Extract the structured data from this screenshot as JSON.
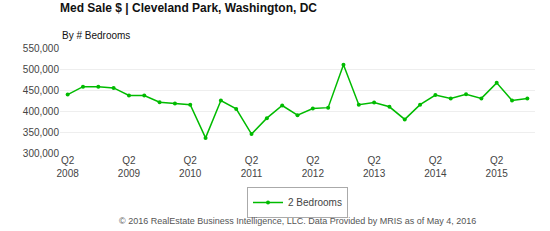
{
  "chart_data": {
    "type": "line",
    "title": "Med Sale $ | Cleveland Park, Washington, DC",
    "subtitle": "By # Bedrooms",
    "annotations": [
      "© 2016 RealEstate Business Intelligence, LLC. Data Provided by MRIS as of May 4, 2016"
    ],
    "categories": [
      "Q2\n2008",
      null,
      null,
      null,
      "Q2\n2009",
      null,
      null,
      null,
      "Q2\n2010",
      null,
      null,
      null,
      "Q2\n2011",
      null,
      null,
      null,
      "Q2\n2012",
      null,
      null,
      null,
      "Q2\n2013",
      null,
      null,
      null,
      "Q2\n2014",
      null,
      null,
      null,
      "Q2\n2015",
      null,
      null
    ],
    "series": [
      {
        "name": "2 Bedrooms",
        "color": "#00bb00",
        "marker": "circle",
        "values": [
          439000,
          458000,
          458000,
          455000,
          437000,
          437000,
          421000,
          418000,
          415000,
          336000,
          425000,
          405000,
          345000,
          383000,
          413000,
          390000,
          406000,
          408000,
          510000,
          415000,
          420000,
          410000,
          380000,
          415000,
          438000,
          430000,
          440000,
          430000,
          467000,
          425000,
          430000
        ]
      }
    ],
    "ylim": [
      300000,
      550000
    ],
    "yticks": [
      {
        "value": 300000,
        "label": "300,000"
      },
      {
        "value": 350000,
        "label": "350,000"
      },
      {
        "value": 400000,
        "label": "400,000"
      },
      {
        "value": 450000,
        "label": "450,000"
      },
      {
        "value": 500000,
        "label": "500,000"
      },
      {
        "value": 550000,
        "label": "550,000"
      }
    ],
    "grid": true,
    "legend": "bottom"
  }
}
